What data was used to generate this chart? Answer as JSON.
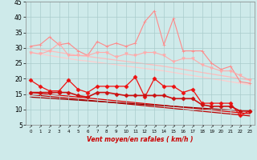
{
  "x": [
    0,
    1,
    2,
    3,
    4,
    5,
    6,
    7,
    8,
    9,
    10,
    11,
    12,
    13,
    14,
    15,
    16,
    17,
    18,
    19,
    20,
    21,
    22,
    23
  ],
  "series": [
    {
      "name": "rafales_spiky",
      "color": "#ff8888",
      "linewidth": 0.8,
      "marker": "+",
      "markersize": 3,
      "values": [
        30.5,
        31.0,
        33.5,
        31.0,
        31.5,
        29.0,
        27.5,
        32.0,
        30.5,
        31.5,
        30.5,
        31.5,
        38.5,
        42.0,
        31.0,
        39.5,
        29.0,
        29.0,
        29.0,
        25.0,
        23.0,
        24.0,
        19.0,
        18.5
      ]
    },
    {
      "name": "rafales_lower",
      "color": "#ffaaaa",
      "linewidth": 0.8,
      "marker": "v",
      "markersize": 2.5,
      "values": [
        28.5,
        28.0,
        29.0,
        31.5,
        27.5,
        27.5,
        27.5,
        28.5,
        28.5,
        27.0,
        28.0,
        27.5,
        28.5,
        28.5,
        27.5,
        25.5,
        26.5,
        26.5,
        24.5,
        23.5,
        22.5,
        22.5,
        21.0,
        19.5
      ]
    },
    {
      "name": "trend_rafales1",
      "color": "#ffbbbb",
      "linewidth": 0.9,
      "marker": null,
      "values": [
        30.0,
        29.5,
        29.0,
        28.5,
        28.0,
        27.5,
        27.2,
        26.8,
        26.4,
        26.0,
        25.6,
        25.2,
        24.8,
        24.4,
        24.0,
        23.5,
        23.0,
        22.5,
        22.0,
        21.5,
        21.0,
        20.5,
        20.0,
        19.5
      ]
    },
    {
      "name": "trend_rafales2",
      "color": "#ffcccc",
      "linewidth": 0.9,
      "marker": null,
      "values": [
        28.5,
        28.0,
        27.5,
        27.0,
        26.5,
        26.0,
        25.7,
        25.3,
        24.9,
        24.5,
        24.1,
        23.7,
        23.3,
        22.9,
        22.5,
        22.0,
        21.5,
        21.0,
        20.5,
        20.0,
        19.5,
        19.0,
        18.5,
        18.0
      ]
    },
    {
      "name": "vent_spiky",
      "color": "#ee1111",
      "linewidth": 0.9,
      "marker": "D",
      "markersize": 2.5,
      "values": [
        19.5,
        17.5,
        16.0,
        16.0,
        19.5,
        16.5,
        15.5,
        17.5,
        17.5,
        17.5,
        17.5,
        20.5,
        14.0,
        20.0,
        17.5,
        17.5,
        15.5,
        16.5,
        12.0,
        12.0,
        12.0,
        12.0,
        8.0,
        9.5
      ]
    },
    {
      "name": "vent_lower",
      "color": "#cc1111",
      "linewidth": 1.2,
      "marker": "D",
      "markersize": 2.5,
      "values": [
        15.5,
        15.5,
        15.5,
        15.5,
        15.5,
        14.5,
        14.0,
        15.5,
        15.5,
        15.0,
        14.5,
        14.5,
        14.5,
        14.5,
        14.5,
        13.5,
        13.5,
        13.5,
        11.5,
        11.0,
        11.0,
        11.0,
        9.5,
        9.5
      ]
    },
    {
      "name": "trend_vent1",
      "color": "#dd0000",
      "linewidth": 0.9,
      "marker": null,
      "values": [
        15.5,
        15.2,
        14.9,
        14.6,
        14.3,
        14.0,
        13.7,
        13.4,
        13.1,
        12.8,
        12.5,
        12.2,
        11.9,
        11.6,
        11.3,
        11.0,
        10.7,
        10.4,
        10.1,
        9.8,
        9.5,
        9.2,
        8.9,
        8.6
      ]
    },
    {
      "name": "trend_vent2",
      "color": "#bb0000",
      "linewidth": 0.9,
      "marker": null,
      "values": [
        14.8,
        14.5,
        14.2,
        13.9,
        13.6,
        13.3,
        13.0,
        12.7,
        12.4,
        12.1,
        11.8,
        11.5,
        11.2,
        10.9,
        10.6,
        10.3,
        10.0,
        9.7,
        9.4,
        9.1,
        8.8,
        8.5,
        8.2,
        7.9
      ]
    },
    {
      "name": "trend_vent3",
      "color": "#990000",
      "linewidth": 0.9,
      "marker": null,
      "values": [
        14.0,
        13.8,
        13.6,
        13.4,
        13.2,
        13.0,
        12.8,
        12.6,
        12.4,
        12.2,
        12.0,
        11.8,
        11.6,
        11.4,
        11.2,
        11.0,
        10.8,
        10.6,
        10.4,
        10.2,
        10.0,
        9.8,
        9.6,
        9.4
      ]
    }
  ],
  "ylim": [
    5,
    45
  ],
  "yticks": [
    5,
    10,
    15,
    20,
    25,
    30,
    35,
    40,
    45
  ],
  "xlim": [
    -0.5,
    23.5
  ],
  "xlabel": "Vent moyen/en rafales ( km/h )",
  "background_color": "#ceeaea",
  "grid_color": "#aacccc",
  "arrow_symbol": "↗"
}
